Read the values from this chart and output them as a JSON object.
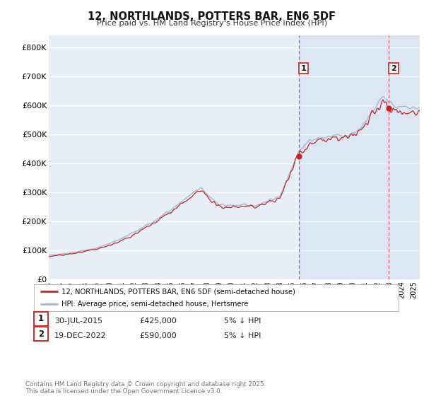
{
  "title": "12, NORTHLANDS, POTTERS BAR, EN6 5DF",
  "subtitle": "Price paid vs. HM Land Registry's House Price Index (HPI)",
  "ylabel_ticks": [
    "£0",
    "£100K",
    "£200K",
    "£300K",
    "£400K",
    "£500K",
    "£600K",
    "£700K",
    "£800K"
  ],
  "ytick_values": [
    0,
    100000,
    200000,
    300000,
    400000,
    500000,
    600000,
    700000,
    800000
  ],
  "ylim": [
    0,
    840000
  ],
  "xlim_start": 1995.0,
  "xlim_end": 2025.5,
  "hpi_color": "#a0b8d8",
  "price_color": "#cc2222",
  "marker1_date": 2015.58,
  "marker2_date": 2022.97,
  "marker1_price": 425000,
  "marker2_price": 590000,
  "legend_label1": "12, NORTHLANDS, POTTERS BAR, EN6 5DF (semi-detached house)",
  "legend_label2": "HPI: Average price, semi-detached house, Hertsmere",
  "annotation1_date": "30-JUL-2015",
  "annotation2_date": "19-DEC-2022",
  "annotation1_val": "£425,000",
  "annotation2_val": "£590,000",
  "annotation1_pct": "5% ↓ HPI",
  "annotation2_pct": "5% ↓ HPI",
  "footer": "Contains HM Land Registry data © Crown copyright and database right 2025.\nThis data is licensed under the Open Government Licence v3.0.",
  "bg_color": "#ffffff",
  "plot_bg_color": "#e8eef6",
  "grid_color": "#ffffff",
  "vline_color": "#dd4455"
}
